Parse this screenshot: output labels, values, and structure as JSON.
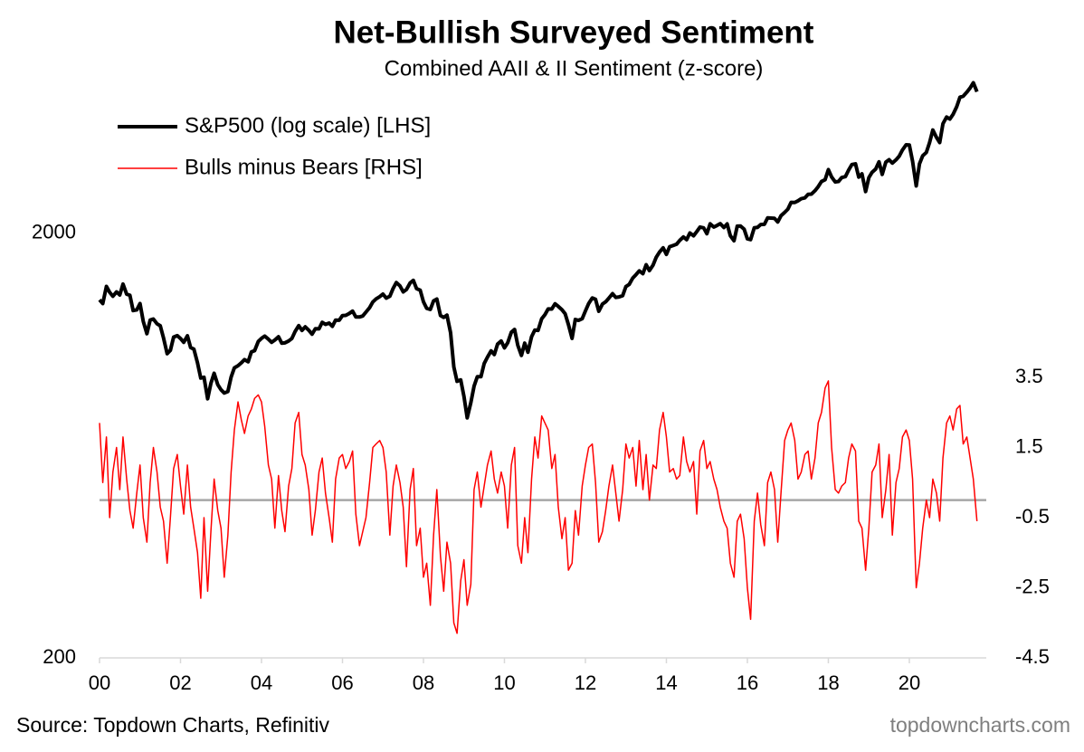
{
  "chart_data": {
    "type": "line",
    "title": "Net-Bullish Surveyed Sentiment",
    "subtitle": "Combined AAII & II Sentiment (z-score)",
    "source": "Source: Topdown Charts, Refinitiv",
    "watermark": "topdowncharts.com",
    "legend_position": "upper-left",
    "ylog": true,
    "y2_zero_line": true,
    "xlim": [
      2000,
      2021.9
    ],
    "xticks": [
      {
        "value": 2000,
        "label": "00"
      },
      {
        "value": 2002,
        "label": "02"
      },
      {
        "value": 2004,
        "label": "04"
      },
      {
        "value": 2006,
        "label": "06"
      },
      {
        "value": 2008,
        "label": "08"
      },
      {
        "value": 2010,
        "label": "10"
      },
      {
        "value": 2012,
        "label": "12"
      },
      {
        "value": 2014,
        "label": "14"
      },
      {
        "value": 2016,
        "label": "16"
      },
      {
        "value": 2018,
        "label": "18"
      },
      {
        "value": 2020,
        "label": "20"
      }
    ],
    "ylim": [
      200,
      5000
    ],
    "yticks": [
      200,
      2000
    ],
    "y2lim": [
      -4.5,
      12.43
    ],
    "y2ticks": [
      3.5,
      1.5,
      -0.5,
      -2.5,
      -4.5
    ],
    "x": [
      2000.0,
      2000.08,
      2000.17,
      2000.25,
      2000.33,
      2000.42,
      2000.5,
      2000.58,
      2000.67,
      2000.75,
      2000.83,
      2000.92,
      2001.0,
      2001.08,
      2001.17,
      2001.25,
      2001.33,
      2001.42,
      2001.5,
      2001.58,
      2001.67,
      2001.75,
      2001.83,
      2001.92,
      2002.0,
      2002.08,
      2002.17,
      2002.25,
      2002.33,
      2002.42,
      2002.5,
      2002.58,
      2002.67,
      2002.75,
      2002.83,
      2002.92,
      2003.0,
      2003.08,
      2003.17,
      2003.25,
      2003.33,
      2003.42,
      2003.5,
      2003.58,
      2003.67,
      2003.75,
      2003.83,
      2003.92,
      2004.0,
      2004.08,
      2004.17,
      2004.25,
      2004.33,
      2004.42,
      2004.5,
      2004.58,
      2004.67,
      2004.75,
      2004.83,
      2004.92,
      2005.0,
      2005.08,
      2005.17,
      2005.25,
      2005.33,
      2005.42,
      2005.5,
      2005.58,
      2005.67,
      2005.75,
      2005.83,
      2005.92,
      2006.0,
      2006.08,
      2006.17,
      2006.25,
      2006.33,
      2006.42,
      2006.5,
      2006.58,
      2006.67,
      2006.75,
      2006.83,
      2006.92,
      2007.0,
      2007.08,
      2007.17,
      2007.25,
      2007.33,
      2007.42,
      2007.5,
      2007.58,
      2007.67,
      2007.75,
      2007.83,
      2007.92,
      2008.0,
      2008.08,
      2008.17,
      2008.25,
      2008.33,
      2008.42,
      2008.5,
      2008.58,
      2008.67,
      2008.75,
      2008.83,
      2008.92,
      2009.0,
      2009.08,
      2009.17,
      2009.25,
      2009.33,
      2009.42,
      2009.5,
      2009.58,
      2009.67,
      2009.75,
      2009.83,
      2009.92,
      2010.0,
      2010.08,
      2010.17,
      2010.25,
      2010.33,
      2010.42,
      2010.5,
      2010.58,
      2010.67,
      2010.75,
      2010.83,
      2010.92,
      2011.0,
      2011.08,
      2011.17,
      2011.25,
      2011.33,
      2011.42,
      2011.5,
      2011.58,
      2011.67,
      2011.75,
      2011.83,
      2011.92,
      2012.0,
      2012.08,
      2012.17,
      2012.25,
      2012.33,
      2012.42,
      2012.5,
      2012.58,
      2012.67,
      2012.75,
      2012.83,
      2012.92,
      2013.0,
      2013.08,
      2013.17,
      2013.25,
      2013.33,
      2013.42,
      2013.5,
      2013.58,
      2013.67,
      2013.75,
      2013.83,
      2013.92,
      2014.0,
      2014.08,
      2014.17,
      2014.25,
      2014.33,
      2014.42,
      2014.5,
      2014.58,
      2014.67,
      2014.75,
      2014.83,
      2014.92,
      2015.0,
      2015.08,
      2015.17,
      2015.25,
      2015.33,
      2015.42,
      2015.5,
      2015.58,
      2015.67,
      2015.75,
      2015.83,
      2015.92,
      2016.0,
      2016.08,
      2016.17,
      2016.25,
      2016.33,
      2016.42,
      2016.5,
      2016.58,
      2016.67,
      2016.75,
      2016.83,
      2016.92,
      2017.0,
      2017.08,
      2017.17,
      2017.25,
      2017.33,
      2017.42,
      2017.5,
      2017.58,
      2017.67,
      2017.75,
      2017.83,
      2017.92,
      2018.0,
      2018.08,
      2018.17,
      2018.25,
      2018.33,
      2018.42,
      2018.5,
      2018.58,
      2018.67,
      2018.75,
      2018.83,
      2018.92,
      2019.0,
      2019.08,
      2019.17,
      2019.25,
      2019.33,
      2019.42,
      2019.5,
      2019.58,
      2019.67,
      2019.75,
      2019.83,
      2019.92,
      2020.0,
      2020.08,
      2020.17,
      2020.25,
      2020.33,
      2020.42,
      2020.5,
      2020.58,
      2020.67,
      2020.75,
      2020.83,
      2020.92,
      2021.0,
      2021.08,
      2021.17,
      2021.25,
      2021.33,
      2021.42,
      2021.5,
      2021.58,
      2021.67
    ],
    "series": [
      {
        "name": "S&P500 (log scale) [LHS]",
        "color": "#000000",
        "width": 4,
        "values": [
          1394,
          1366,
          1499,
          1452,
          1421,
          1455,
          1431,
          1518,
          1437,
          1429,
          1315,
          1320,
          1366,
          1240,
          1160,
          1249,
          1256,
          1224,
          1211,
          1134,
          1041,
          1060,
          1139,
          1148,
          1130,
          1107,
          1147,
          1076,
          1067,
          990,
          912,
          916,
          815,
          886,
          936,
          880,
          856,
          841,
          848,
          917,
          964,
          975,
          990,
          1008,
          996,
          1051,
          1058,
          1112,
          1131,
          1145,
          1126,
          1107,
          1121,
          1141,
          1102,
          1104,
          1115,
          1130,
          1174,
          1212,
          1181,
          1204,
          1181,
          1157,
          1192,
          1191,
          1234,
          1220,
          1229,
          1207,
          1249,
          1248,
          1280,
          1281,
          1295,
          1311,
          1270,
          1270,
          1277,
          1304,
          1336,
          1378,
          1401,
          1418,
          1438,
          1407,
          1421,
          1482,
          1531,
          1503,
          1455,
          1474,
          1527,
          1549,
          1481,
          1468,
          1379,
          1331,
          1323,
          1386,
          1400,
          1280,
          1267,
          1283,
          1166,
          969,
          896,
          903,
          826,
          735,
          798,
          873,
          919,
          919,
          987,
          1021,
          1057,
          1036,
          1096,
          1115,
          1074,
          1104,
          1169,
          1187,
          1089,
          1031,
          1102,
          1049,
          1141,
          1183,
          1181,
          1258,
          1286,
          1327,
          1326,
          1364,
          1345,
          1321,
          1292,
          1219,
          1131,
          1253,
          1247,
          1258,
          1312,
          1366,
          1408,
          1398,
          1310,
          1362,
          1379,
          1407,
          1441,
          1412,
          1416,
          1426,
          1498,
          1515,
          1569,
          1598,
          1631,
          1606,
          1686,
          1633,
          1682,
          1757,
          1806,
          1848,
          1783,
          1859,
          1872,
          1884,
          1924,
          1960,
          1931,
          2003,
          1972,
          2018,
          2068,
          2059,
          1995,
          2105,
          2068,
          2086,
          2107,
          2063,
          2104,
          1972,
          1920,
          2079,
          2080,
          2044,
          1940,
          1932,
          2060,
          2065,
          2097,
          2099,
          2174,
          2171,
          2168,
          2126,
          2199,
          2239,
          2279,
          2364,
          2363,
          2384,
          2412,
          2423,
          2470,
          2472,
          2519,
          2575,
          2648,
          2674,
          2824,
          2714,
          2641,
          2648,
          2705,
          2718,
          2816,
          2902,
          2914,
          2712,
          2760,
          2507,
          2704,
          2784,
          2834,
          2946,
          2752,
          2942,
          2980,
          2926,
          2977,
          3038,
          3141,
          3231,
          3226,
          2954,
          2585,
          2912,
          3044,
          3100,
          3271,
          3500,
          3363,
          3270,
          3622,
          3756,
          3714,
          3811,
          3973,
          4181,
          4204,
          4298,
          4395,
          4523,
          4308
        ]
      },
      {
        "name": "Bulls minus Bears [RHS]",
        "color": "#ff0000",
        "width": 1.5,
        "axis": "y2",
        "values": [
          2.2,
          0.5,
          1.8,
          -0.5,
          0.8,
          1.5,
          0.3,
          1.8,
          0.6,
          -0.3,
          -0.8,
          0.2,
          1.0,
          -0.5,
          -1.2,
          0.5,
          1.5,
          0.8,
          -0.2,
          -0.6,
          -1.8,
          -0.5,
          0.9,
          1.3,
          0.4,
          -0.4,
          1.0,
          -0.2,
          -0.8,
          -1.5,
          -2.8,
          -0.5,
          -2.6,
          -0.9,
          0.6,
          -0.3,
          -0.8,
          -2.2,
          -1.0,
          0.8,
          2.0,
          2.8,
          2.3,
          1.9,
          2.4,
          2.6,
          2.9,
          3.0,
          2.8,
          2.1,
          1.0,
          0.6,
          -0.8,
          0.7,
          -0.3,
          -0.9,
          0.4,
          0.9,
          2.2,
          2.5,
          1.3,
          1.0,
          0.3,
          -1.0,
          -0.3,
          0.8,
          1.2,
          0.2,
          -0.5,
          -1.2,
          0.6,
          1.2,
          1.3,
          0.9,
          1.1,
          1.4,
          -0.4,
          -1.3,
          -0.9,
          -0.5,
          0.5,
          1.5,
          1.6,
          1.7,
          1.5,
          0.8,
          -1.0,
          0.4,
          1.0,
          0.5,
          -0.2,
          -1.9,
          0.3,
          0.9,
          -1.3,
          -0.8,
          -2.2,
          -1.8,
          -3.0,
          -1.0,
          0.3,
          -1.6,
          -2.6,
          -1.2,
          -1.8,
          -3.5,
          -3.8,
          -2.3,
          -1.7,
          -3.0,
          -2.4,
          0.3,
          0.8,
          -0.2,
          0.4,
          1.0,
          1.4,
          0.6,
          0.2,
          0.8,
          0.4,
          -0.8,
          1.0,
          1.5,
          -1.3,
          -1.8,
          -0.5,
          -1.5,
          0.6,
          1.8,
          1.2,
          2.4,
          2.2,
          2.0,
          0.9,
          1.3,
          -0.2,
          -1.1,
          -0.5,
          -2.0,
          -1.8,
          -0.3,
          -1.0,
          0.4,
          1.0,
          1.5,
          1.6,
          0.5,
          -1.2,
          -0.9,
          -0.3,
          0.4,
          1.0,
          0.2,
          -0.6,
          0.3,
          1.6,
          1.2,
          1.5,
          0.4,
          1.7,
          0.3,
          1.3,
          0.0,
          1.0,
          0.9,
          2.0,
          2.5,
          1.8,
          0.8,
          0.9,
          0.6,
          0.7,
          1.8,
          1.1,
          0.8,
          1.1,
          -0.4,
          1.4,
          1.7,
          0.9,
          1.1,
          0.6,
          0.3,
          -0.2,
          -0.6,
          -0.8,
          -1.8,
          -2.2,
          -0.6,
          -0.4,
          -1.1,
          -2.5,
          -3.4,
          -0.6,
          0.2,
          -0.7,
          -1.3,
          0.5,
          0.8,
          0.3,
          -1.2,
          0.2,
          1.7,
          2.0,
          2.2,
          1.7,
          0.6,
          0.8,
          1.3,
          1.4,
          0.6,
          1.2,
          2.2,
          2.5,
          3.2,
          3.4,
          1.5,
          0.3,
          0.2,
          0.4,
          0.5,
          1.2,
          1.6,
          1.4,
          -0.6,
          -0.8,
          -2.0,
          -0.8,
          0.8,
          1.0,
          1.6,
          -0.5,
          0.3,
          1.3,
          -1.0,
          0.5,
          0.9,
          1.8,
          2.0,
          1.7,
          0.6,
          -2.5,
          -1.8,
          -0.8,
          0.0,
          -0.5,
          0.6,
          0.2,
          -0.6,
          1.2,
          2.2,
          2.4,
          2.0,
          2.6,
          2.7,
          1.6,
          1.8,
          1.2,
          0.6,
          -0.6
        ]
      }
    ]
  }
}
